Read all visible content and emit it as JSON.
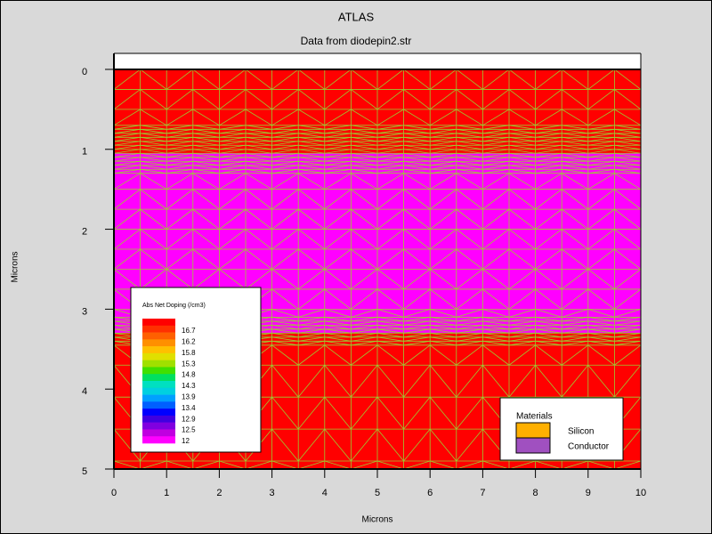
{
  "chart_data": {
    "type": "mesh",
    "title": "ATLAS",
    "subtitle": "Data from diodepin2.str",
    "x_label": "Microns",
    "y_label": "Microns",
    "xlim": [
      0,
      10
    ],
    "ylim": [
      5,
      -0.2
    ],
    "xticks": [
      0,
      1,
      2,
      3,
      4,
      5,
      6,
      7,
      8,
      9,
      10
    ],
    "yticks": [
      0,
      1,
      2,
      3,
      4,
      5
    ],
    "mesh_color": "#9acd32",
    "bands": [
      {
        "y": [
          -0.2,
          0
        ],
        "color": "#ffffff"
      },
      {
        "y": [
          0,
          1.05
        ],
        "color": "#ff0000"
      },
      {
        "y": [
          1.05,
          3.3
        ],
        "color": "#ff00ff"
      },
      {
        "y": [
          3.3,
          5
        ],
        "color": "#ff0000"
      }
    ],
    "colorbar": {
      "title": "Abs Net Doping (/cm3)",
      "ticks": [
        16.7,
        16.2,
        15.8,
        15.3,
        14.8,
        14.3,
        13.9,
        13.4,
        12.9,
        12.5,
        12
      ],
      "colors": [
        "#ff0000",
        "#ff3000",
        "#ff6000",
        "#ff9000",
        "#ffc000",
        "#e0e000",
        "#a0e000",
        "#40e000",
        "#00e060",
        "#00e0c0",
        "#00d0e0",
        "#00a0ff",
        "#0060ff",
        "#0000ff",
        "#4000e0",
        "#8000e0",
        "#c000e0",
        "#ff00ff"
      ]
    },
    "materials": {
      "title": "Materials",
      "items": [
        {
          "name": "Silicon",
          "color": "#ffb000"
        },
        {
          "name": "Conductor",
          "color": "#a050c0"
        }
      ]
    }
  }
}
